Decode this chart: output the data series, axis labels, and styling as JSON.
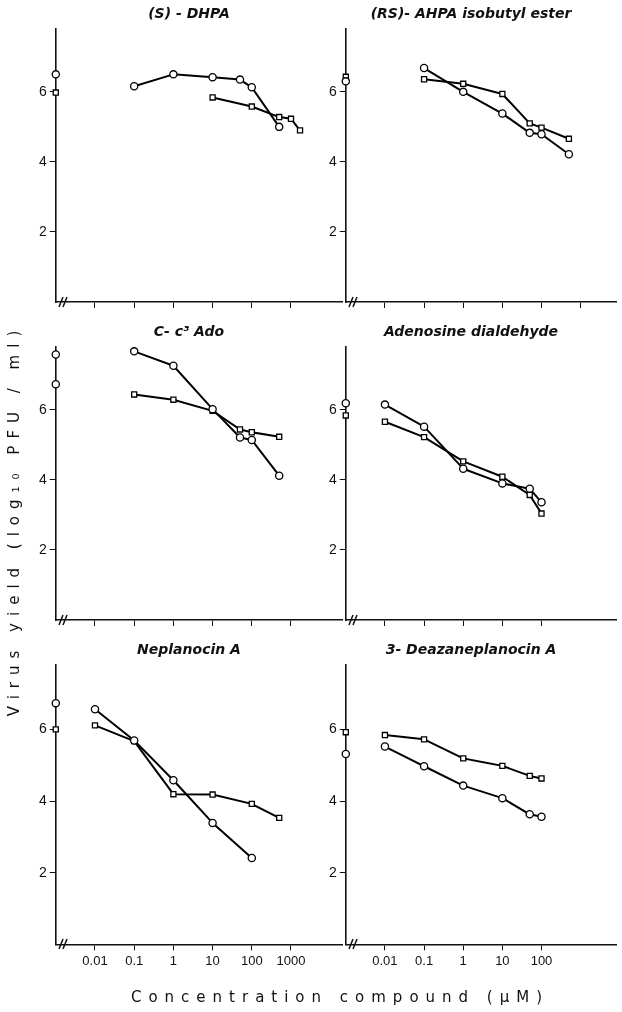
{
  "chart_data": [
    {
      "type": "line",
      "title": "(S) - DHPA",
      "log": "x",
      "xlim": [
        0.001,
        20000
      ],
      "xticks": [
        {
          "value": 0.01,
          "label": null
        },
        {
          "value": 0.1,
          "label": null
        },
        {
          "value": 1,
          "label": null
        },
        {
          "value": 10,
          "label": null
        },
        {
          "value": 100,
          "label": null
        },
        {
          "value": 1000,
          "label": null
        }
      ],
      "ylim": [
        0,
        7.8
      ],
      "yticks": [
        2,
        4,
        6
      ],
      "tick_labels": "y",
      "series": [
        {
          "marker": "circle",
          "color": "#000000",
          "x": [
            0.1,
            1,
            10,
            50,
            100,
            500
          ],
          "values": [
            6.16,
            6.5,
            6.42,
            6.35,
            6.13,
            5.0
          ]
        },
        {
          "marker": "square",
          "color": "#000000",
          "x": [
            10,
            100,
            500,
            1000,
            1700
          ],
          "values": [
            5.84,
            5.58,
            5.28,
            5.23,
            4.9
          ]
        },
        {
          "type": "scatter",
          "marker": "circle",
          "color": "#000000",
          "x": [
            0.001
          ],
          "values": [
            6.5
          ]
        },
        {
          "type": "scatter",
          "marker": "square",
          "color": "#000000",
          "x": [
            0.001
          ],
          "values": [
            5.98
          ]
        }
      ]
    },
    {
      "type": "line",
      "title": "(RS)- AHPA isobutyl ester",
      "log": "x",
      "xlim": [
        0.001,
        8000
      ],
      "xticks": [
        {
          "value": 0.01,
          "label": null
        },
        {
          "value": 0.1,
          "label": null
        },
        {
          "value": 1,
          "label": null
        },
        {
          "value": 10,
          "label": null
        },
        {
          "value": 100,
          "label": null
        },
        {
          "value": 1000,
          "label": null
        }
      ],
      "ylim": [
        0,
        7.8
      ],
      "yticks": [
        2,
        4,
        6
      ],
      "tick_labels": "y",
      "series": [
        {
          "marker": "circle",
          "color": "#000000",
          "x": [
            0.1,
            1,
            10,
            50,
            100,
            500
          ],
          "values": [
            6.68,
            6.0,
            5.38,
            4.83,
            4.79,
            4.22
          ]
        },
        {
          "marker": "square",
          "color": "#000000",
          "x": [
            0.1,
            1,
            10,
            50,
            100,
            500
          ],
          "values": [
            6.36,
            6.23,
            5.94,
            5.1,
            4.98,
            4.66
          ]
        },
        {
          "type": "scatter",
          "marker": "circle",
          "color": "#000000",
          "x": [
            0.001
          ],
          "values": [
            6.3
          ]
        },
        {
          "type": "scatter",
          "marker": "square",
          "color": "#000000",
          "x": [
            0.001
          ],
          "values": [
            6.43
          ]
        }
      ]
    },
    {
      "type": "line",
      "title": "C- c³ Ado",
      "ylabel": "Virus yield (log₁₀ PFU / ml)",
      "log": "x",
      "xlim": [
        0.001,
        20000
      ],
      "xticks": [
        {
          "value": 0.01,
          "label": null
        },
        {
          "value": 0.1,
          "label": null
        },
        {
          "value": 1,
          "label": null
        },
        {
          "value": 10,
          "label": null
        },
        {
          "value": 100,
          "label": null
        },
        {
          "value": 1000,
          "label": null
        }
      ],
      "ylim": [
        0,
        7.8
      ],
      "yticks": [
        2,
        4,
        6
      ],
      "tick_labels": "y",
      "series": [
        {
          "marker": "circle",
          "color": "#000000",
          "x": [
            0.1,
            1,
            10,
            50,
            100,
            500
          ],
          "values": [
            7.67,
            7.26,
            6.02,
            5.21,
            5.14,
            4.12
          ]
        },
        {
          "marker": "square",
          "color": "#000000",
          "x": [
            0.1,
            1,
            10,
            50,
            100,
            500
          ],
          "values": [
            6.44,
            6.29,
            5.97,
            5.44,
            5.36,
            5.23
          ]
        },
        {
          "type": "scatter",
          "marker": "circle",
          "color": "#000000",
          "x": [
            0.001,
            0.001
          ],
          "values": [
            7.58,
            6.73
          ]
        }
      ]
    },
    {
      "type": "line",
      "title": "Adenosine dialdehyde",
      "log": "x",
      "xlim": [
        0.001,
        8000
      ],
      "xticks": [
        {
          "value": 0.01,
          "label": null
        },
        {
          "value": 0.1,
          "label": null
        },
        {
          "value": 1,
          "label": null
        },
        {
          "value": 10,
          "label": null
        },
        {
          "value": 100,
          "label": null
        }
      ],
      "ylim": [
        0,
        7.8
      ],
      "yticks": [
        2,
        4,
        6
      ],
      "tick_labels": "y",
      "series": [
        {
          "marker": "circle",
          "color": "#000000",
          "x": [
            0.01,
            0.1,
            1,
            10,
            50,
            100
          ],
          "values": [
            6.15,
            5.52,
            4.32,
            3.9,
            3.75,
            3.36
          ]
        },
        {
          "marker": "square",
          "color": "#000000",
          "x": [
            0.01,
            0.1,
            1,
            10,
            50,
            100
          ],
          "values": [
            5.66,
            5.22,
            4.53,
            4.09,
            3.57,
            3.04
          ]
        },
        {
          "type": "scatter",
          "marker": "circle",
          "color": "#000000",
          "x": [
            0.001
          ],
          "values": [
            6.19
          ]
        },
        {
          "type": "scatter",
          "marker": "square",
          "color": "#000000",
          "x": [
            0.001
          ],
          "values": [
            5.84
          ]
        }
      ]
    },
    {
      "type": "line",
      "title": "Neplanocin A",
      "xlabel": "Concentration compound (µM)",
      "log": "x",
      "xlim": [
        0.001,
        20000
      ],
      "xticks": [
        0.01,
        0.1,
        1,
        10,
        100,
        1000
      ],
      "ylim": [
        0,
        7.8
      ],
      "yticks": [
        2,
        4,
        6
      ],
      "series": [
        {
          "marker": "circle",
          "color": "#000000",
          "x": [
            0.01,
            0.1,
            1,
            10,
            100
          ],
          "values": [
            6.56,
            5.69,
            4.58,
            3.39,
            2.41
          ]
        },
        {
          "marker": "square",
          "color": "#000000",
          "x": [
            0.01,
            0.1,
            1,
            10,
            100,
            500
          ],
          "values": [
            6.11,
            5.67,
            4.19,
            4.18,
            3.92,
            3.53
          ]
        },
        {
          "type": "scatter",
          "marker": "circle",
          "color": "#000000",
          "x": [
            0.001
          ],
          "values": [
            6.73
          ]
        },
        {
          "type": "scatter",
          "marker": "square",
          "color": "#000000",
          "x": [
            0.001
          ],
          "values": [
            6.0
          ]
        }
      ]
    },
    {
      "type": "line",
      "title": "3- Deazaneplanocin A",
      "log": "x",
      "xlim": [
        0.001,
        8000
      ],
      "xticks": [
        0.01,
        0.1,
        1,
        10,
        100
      ],
      "ylim": [
        0,
        7.8
      ],
      "yticks": [
        2,
        4,
        6
      ],
      "series": [
        {
          "marker": "circle",
          "color": "#000000",
          "x": [
            0.01,
            0.1,
            1,
            10,
            50,
            100
          ],
          "values": [
            5.52,
            4.97,
            4.43,
            4.08,
            3.63,
            3.56
          ]
        },
        {
          "marker": "square",
          "color": "#000000",
          "x": [
            0.01,
            0.1,
            1,
            10,
            50,
            100
          ],
          "values": [
            5.84,
            5.72,
            5.19,
            4.98,
            4.7,
            4.63
          ]
        },
        {
          "type": "scatter",
          "marker": "circle",
          "color": "#000000",
          "x": [
            0.001
          ],
          "values": [
            5.31
          ]
        },
        {
          "type": "scatter",
          "marker": "square",
          "color": "#000000",
          "x": [
            0.001
          ],
          "values": [
            5.92
          ]
        }
      ]
    }
  ]
}
